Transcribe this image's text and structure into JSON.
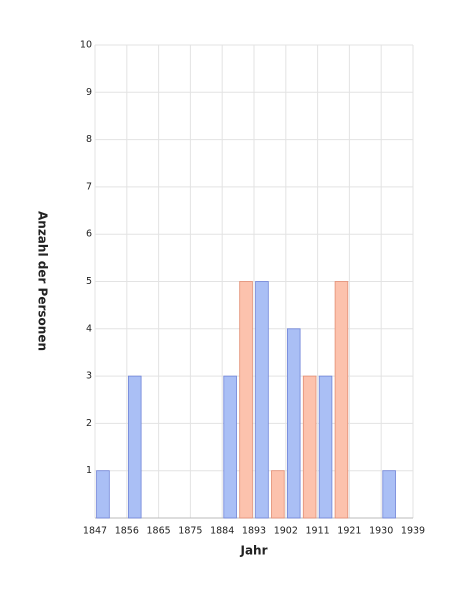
{
  "chart_data": {
    "type": "histogram",
    "xlabel": "Jahr",
    "ylabel": "Anzahl der Personen",
    "bins": [
      1847,
      1851.6,
      1856.2,
      1860.8,
      1865.4,
      1870,
      1874.6,
      1879.2,
      1883.8,
      1888.4,
      1893,
      1897.6,
      1902.2,
      1906.8,
      1911.4,
      1916,
      1920.6,
      1925.2,
      1929.8,
      1934.4,
      1939
    ],
    "series": [
      {
        "color": "#aabff5",
        "edge": "#6f83d8",
        "values": [
          1,
          0,
          3,
          0,
          0,
          0,
          0,
          0,
          3,
          0,
          5,
          0,
          4,
          0,
          3,
          0,
          0,
          0,
          1,
          0
        ]
      },
      {
        "color": "#fcc2ad",
        "edge": "#e38d72",
        "values": [
          0,
          0,
          0,
          0,
          0,
          0,
          0,
          0,
          0,
          5,
          0,
          1,
          0,
          3,
          0,
          5,
          0,
          0,
          0,
          0
        ]
      }
    ],
    "xlim": [
      1847,
      1939
    ],
    "xticks": [
      {
        "value": 1847,
        "label": "1847"
      },
      {
        "value": 1856.2,
        "label": "1856"
      },
      {
        "value": 1865.4,
        "label": "1865"
      },
      {
        "value": 1874.6,
        "label": "1875"
      },
      {
        "value": 1883.8,
        "label": "1884"
      },
      {
        "value": 1893,
        "label": "1893"
      },
      {
        "value": 1902.2,
        "label": "1902"
      },
      {
        "value": 1911.4,
        "label": "1911"
      },
      {
        "value": 1920.6,
        "label": "1921"
      },
      {
        "value": 1929.8,
        "label": "1930"
      },
      {
        "value": 1939,
        "label": "1939"
      }
    ],
    "ylim": [
      0,
      10
    ],
    "yticks": [
      1,
      2,
      3,
      4,
      5,
      6,
      7,
      8,
      9,
      10
    ],
    "grid": true
  }
}
